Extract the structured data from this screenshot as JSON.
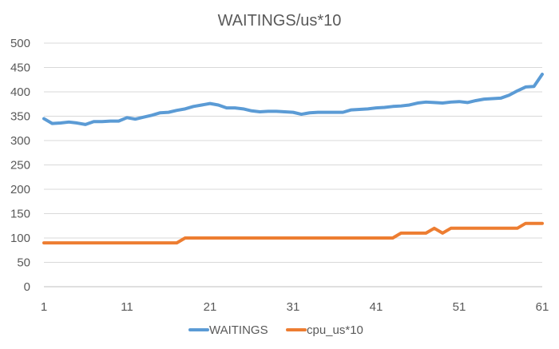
{
  "chart_data": {
    "type": "line",
    "title": "WAITINGS/us*10",
    "xlabel": "",
    "ylabel": "",
    "x": [
      1,
      2,
      3,
      4,
      5,
      6,
      7,
      8,
      9,
      10,
      11,
      12,
      13,
      14,
      15,
      16,
      17,
      18,
      19,
      20,
      21,
      22,
      23,
      24,
      25,
      26,
      27,
      28,
      29,
      30,
      31,
      32,
      33,
      34,
      35,
      36,
      37,
      38,
      39,
      40,
      41,
      42,
      43,
      44,
      45,
      46,
      47,
      48,
      49,
      50,
      51,
      52,
      53,
      54,
      55,
      56,
      57,
      58,
      59,
      60,
      61
    ],
    "x_ticks": [
      1,
      11,
      21,
      31,
      41,
      51,
      61
    ],
    "y_ticks": [
      0,
      50,
      100,
      150,
      200,
      250,
      300,
      350,
      400,
      450,
      500
    ],
    "xlim": [
      1,
      61
    ],
    "ylim": [
      0,
      500
    ],
    "grid": true,
    "legend_position": "bottom",
    "series": [
      {
        "name": "WAITINGS",
        "color": "#5b9bd5",
        "values": [
          345,
          335,
          336,
          338,
          336,
          333,
          339,
          339,
          340,
          340,
          347,
          344,
          348,
          352,
          357,
          358,
          362,
          365,
          370,
          373,
          376,
          373,
          367,
          367,
          365,
          361,
          359,
          360,
          360,
          359,
          358,
          354,
          357,
          358,
          358,
          358,
          358,
          363,
          364,
          365,
          367,
          368,
          370,
          371,
          373,
          377,
          379,
          378,
          377,
          379,
          380,
          378,
          382,
          385,
          386,
          387,
          393,
          402,
          410,
          411,
          436
        ]
      },
      {
        "name": "cpu_us*10",
        "color": "#ed7d31",
        "values": [
          90,
          90,
          90,
          90,
          90,
          90,
          90,
          90,
          90,
          90,
          90,
          90,
          90,
          90,
          90,
          90,
          90,
          100,
          100,
          100,
          100,
          100,
          100,
          100,
          100,
          100,
          100,
          100,
          100,
          100,
          100,
          100,
          100,
          100,
          100,
          100,
          100,
          100,
          100,
          100,
          100,
          100,
          100,
          110,
          110,
          110,
          110,
          120,
          110,
          120,
          120,
          120,
          120,
          120,
          120,
          120,
          120,
          120,
          130,
          130,
          130
        ]
      }
    ]
  }
}
